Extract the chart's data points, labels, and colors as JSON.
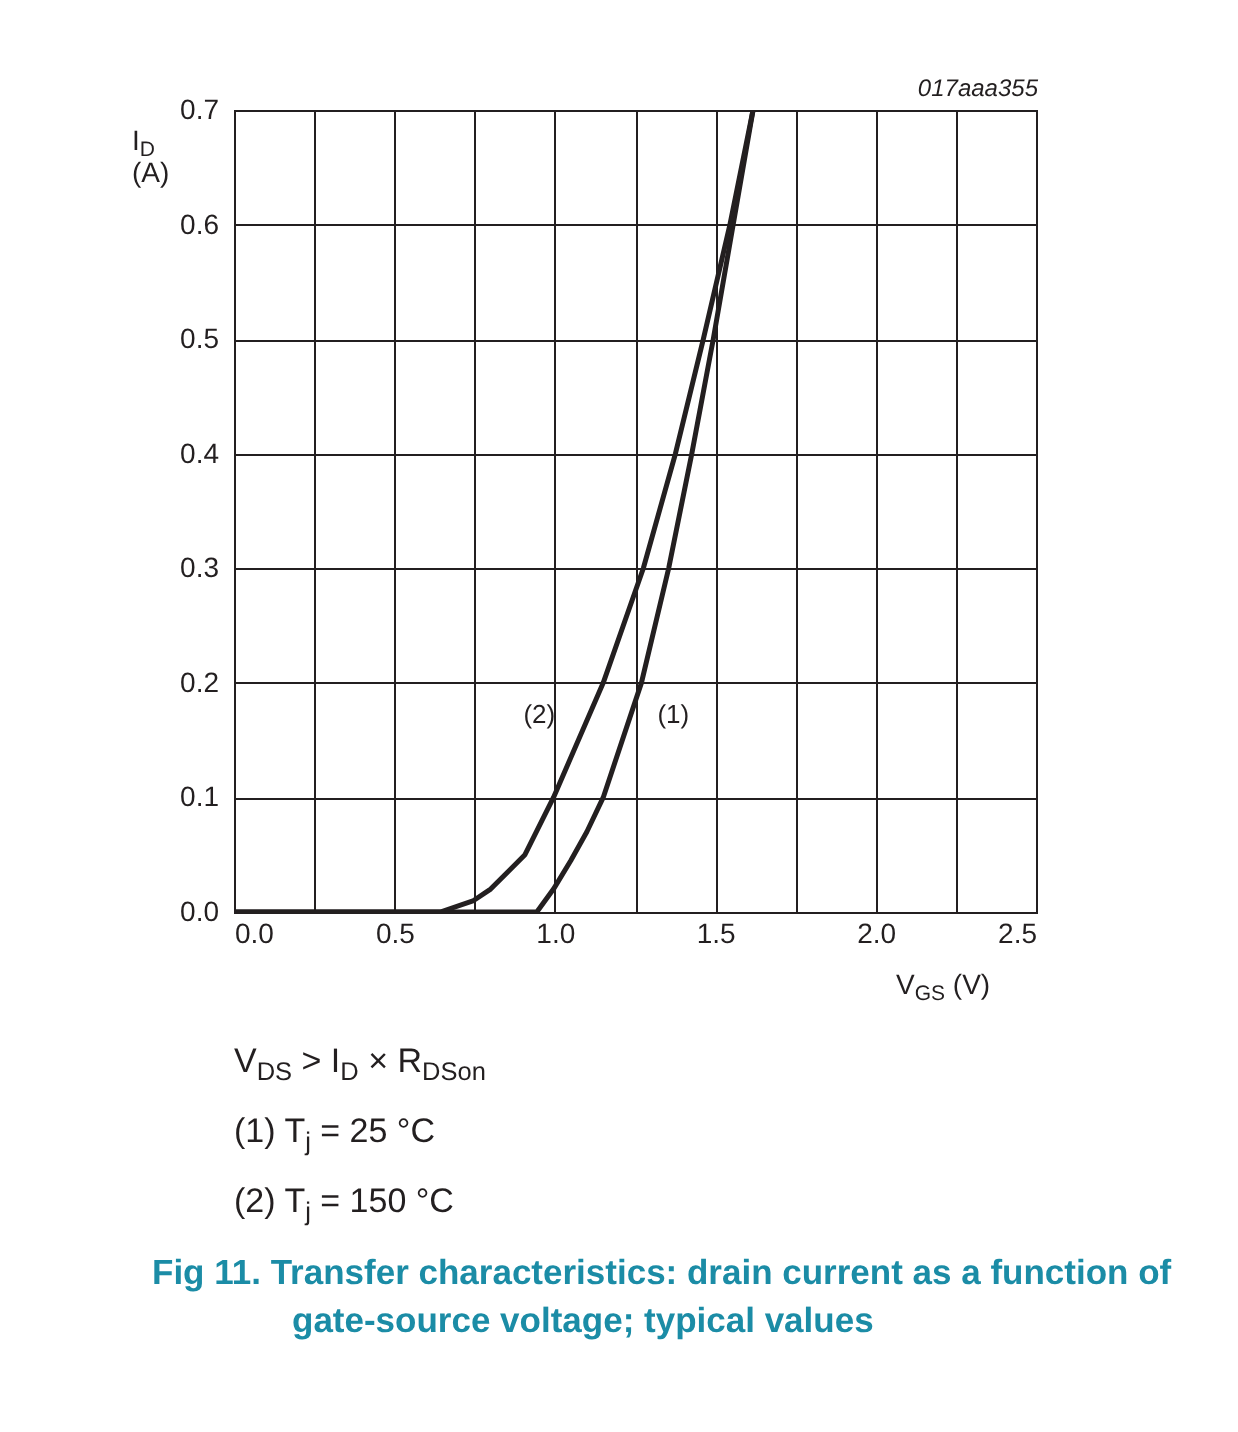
{
  "chart_data": {
    "type": "line",
    "title": "Fig 11.  Transfer characteristics: drain current as a function of gate-source voltage; typical values",
    "xlabel": "V$_{GS}$ (V)",
    "ylabel": "I$_{D}$\n(A)",
    "annotations": [
      "017aaa355",
      "V$_{DS}$ > I$_{D}$ × R$_{DSon}$",
      "(1) T$_{j}$ = 25 °C",
      "(2) T$_{j}$ = 150 °C"
    ],
    "series": [
      {
        "name": "(1)",
        "color": "#231f20",
        "x": [
          0,
          0.5,
          0.944,
          0.996,
          1.05,
          1.1,
          1.151,
          1.27,
          1.355,
          1.427,
          1.494,
          1.556,
          1.618
        ],
        "values": [
          0,
          0,
          0,
          0.02,
          0.045,
          0.07,
          0.1,
          0.2,
          0.3,
          0.4,
          0.5,
          0.6,
          0.7
        ]
      },
      {
        "name": "(2)",
        "color": "#231f20",
        "x": [
          0,
          0.5,
          0.643,
          0.747,
          0.8,
          0.907,
          0.996,
          1.151,
          1.276,
          1.376,
          1.463,
          1.546,
          1.618
        ],
        "values": [
          0,
          0,
          0,
          0.01,
          0.02,
          0.05,
          0.1,
          0.2,
          0.3,
          0.4,
          0.5,
          0.6,
          0.7
        ]
      }
    ],
    "xlim": [
      0,
      2.5
    ],
    "xticks": [
      {
        "value": 0,
        "label": "0.0"
      },
      {
        "value": 0.25,
        "label": null
      },
      0.5,
      {
        "value": 0.75,
        "label": null
      },
      {
        "value": 1,
        "label": "1.0"
      },
      {
        "value": 1.25,
        "label": null
      },
      1.5,
      {
        "value": 1.75,
        "label": null
      },
      {
        "value": 2,
        "label": "2.0"
      },
      {
        "value": 2.25,
        "label": null
      },
      2.5
    ],
    "ylim": [
      0,
      0.7
    ],
    "yticks": [
      {
        "value": 0,
        "label": "0.0"
      },
      0.1,
      0.2,
      0.3,
      0.4,
      0.5,
      0.6,
      0.7
    ],
    "grid": true
  }
}
